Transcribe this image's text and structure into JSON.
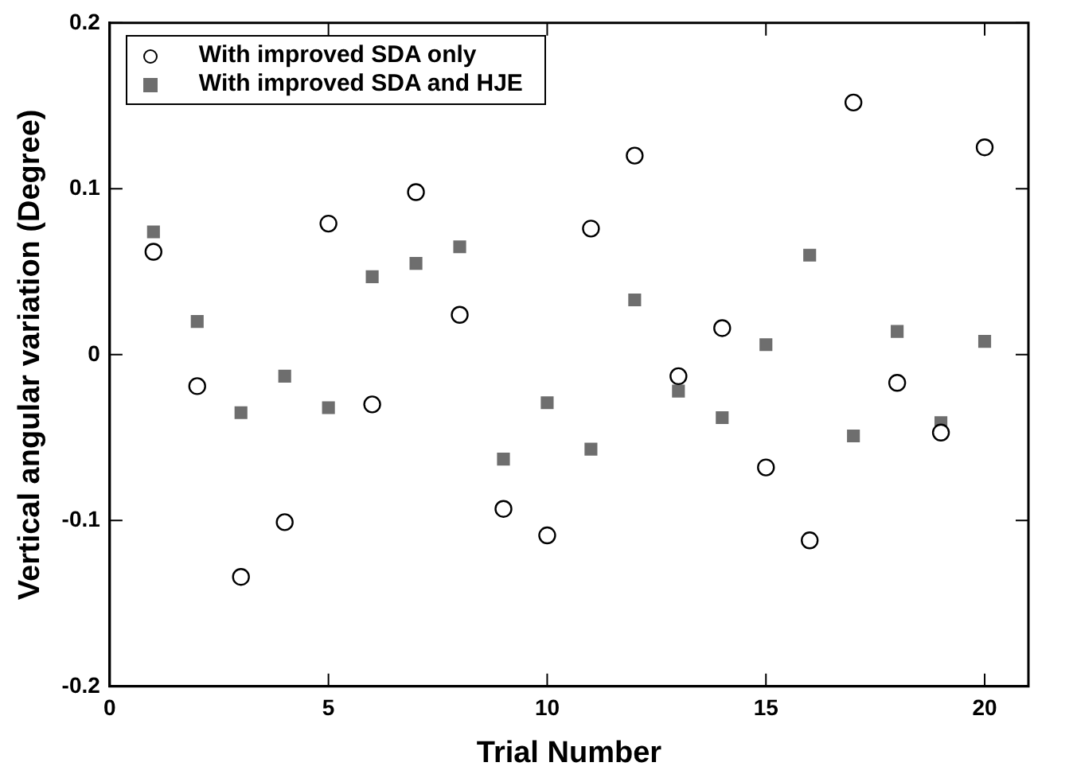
{
  "chart_data": {
    "type": "scatter",
    "xlabel": "Trial Number",
    "ylabel": "Vertical angular variation (Degree)",
    "x": [
      1,
      2,
      3,
      4,
      5,
      6,
      7,
      8,
      9,
      10,
      11,
      12,
      13,
      14,
      15,
      16,
      17,
      18,
      19,
      20
    ],
    "series": [
      {
        "name": "With improved SDA only",
        "color": "#000000",
        "marker": "circle",
        "values": [
          0.062,
          -0.019,
          -0.134,
          -0.101,
          0.079,
          -0.03,
          0.098,
          0.024,
          -0.093,
          -0.109,
          0.076,
          0.12,
          -0.013,
          0.016,
          -0.068,
          -0.112,
          0.152,
          -0.017,
          -0.047,
          0.125
        ]
      },
      {
        "name": "With improved SDA and HJE",
        "color": "#6e6e6e",
        "marker": "square",
        "values": [
          0.074,
          0.02,
          -0.035,
          -0.013,
          -0.032,
          0.047,
          0.055,
          0.065,
          -0.063,
          -0.029,
          -0.057,
          0.033,
          -0.022,
          -0.038,
          0.006,
          0.06,
          -0.049,
          0.014,
          -0.041,
          0.008
        ]
      }
    ],
    "xlim": [
      0,
      21
    ],
    "xticks": [
      0,
      5,
      10,
      15,
      20
    ],
    "ylim": [
      -0.2,
      0.2
    ],
    "yticks": [
      -0.2,
      -0.1,
      0,
      0.1,
      0.2
    ],
    "grid": false,
    "legend": "top left"
  }
}
